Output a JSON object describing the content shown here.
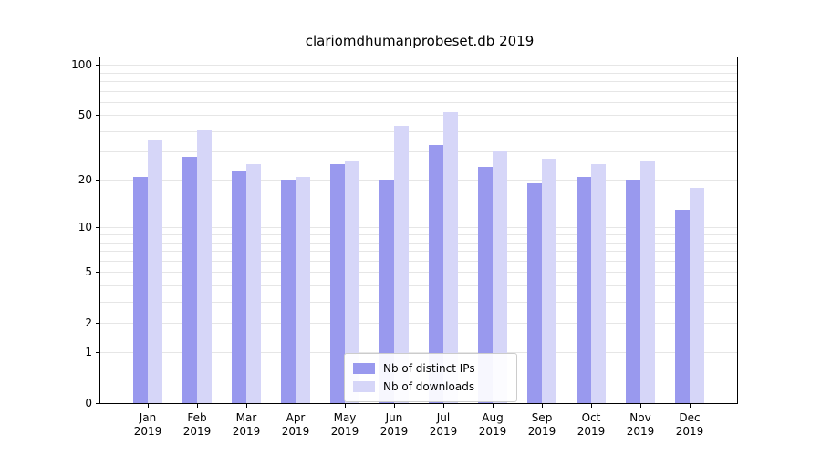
{
  "chart_data": {
    "type": "bar",
    "title": "clariomdhumanprobeset.db 2019",
    "categories": [
      "Jan",
      "Feb",
      "Mar",
      "Apr",
      "May",
      "Jun",
      "Jul",
      "Aug",
      "Sep",
      "Oct",
      "Nov",
      "Dec"
    ],
    "x_year": "2019",
    "series": [
      {
        "name": "Nb of distinct IPs",
        "color": "#9999ee",
        "values": [
          21,
          28,
          23,
          20,
          25,
          20,
          33,
          24,
          19,
          21,
          20,
          13
        ]
      },
      {
        "name": "Nb of downloads",
        "color": "#d6d6f8",
        "values": [
          35,
          41,
          25,
          21,
          26,
          43,
          52,
          30,
          27,
          25,
          26,
          18
        ]
      }
    ],
    "yticks": [
      0,
      1,
      2,
      5,
      10,
      20,
      50,
      100
    ],
    "ylim": [
      0,
      100
    ],
    "scale": "log1p",
    "grid": true,
    "xlabel": "",
    "ylabel": "",
    "legend_position": "lower-center-inside"
  }
}
